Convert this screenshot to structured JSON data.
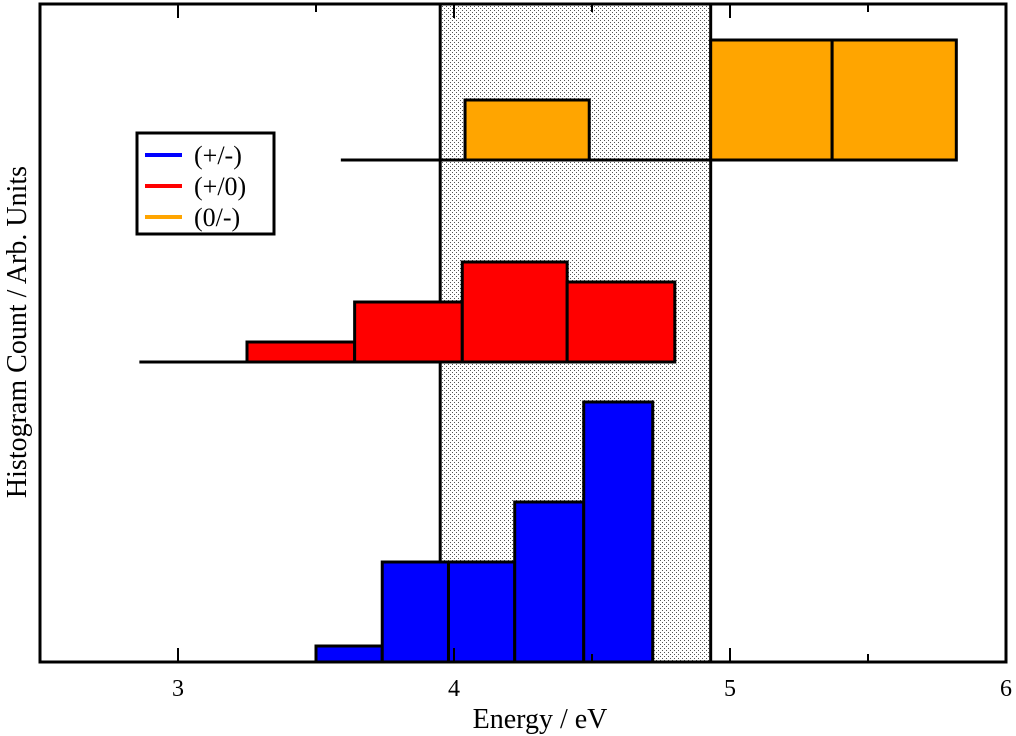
{
  "chart_data": {
    "type": "bar",
    "xlabel": "Energy / eV",
    "ylabel": "Histogram Count / Arb. Units",
    "xlim": [
      2.5,
      6.0
    ],
    "xticks": [
      3,
      4,
      5,
      6
    ],
    "grid": false,
    "legend_position": "upper-left",
    "shaded_region": {
      "x": [
        3.95,
        4.93
      ]
    },
    "series": [
      {
        "name": "(+/-)",
        "color": "#0000ff",
        "baseline_x_start": 3.5,
        "bins": [
          {
            "x0": 3.5,
            "x1": 3.74,
            "count": 0.08
          },
          {
            "x0": 3.74,
            "x1": 3.98,
            "count": 0.5
          },
          {
            "x0": 3.98,
            "x1": 4.22,
            "count": 0.5
          },
          {
            "x0": 4.22,
            "x1": 4.47,
            "count": 0.8
          },
          {
            "x0": 4.47,
            "x1": 4.72,
            "count": 1.3
          }
        ]
      },
      {
        "name": "(+/0)",
        "color": "#ff0000",
        "baseline_x_start": 2.86,
        "bins": [
          {
            "x0": 3.25,
            "x1": 3.64,
            "count": 0.1
          },
          {
            "x0": 3.64,
            "x1": 4.03,
            "count": 0.3
          },
          {
            "x0": 4.03,
            "x1": 4.41,
            "count": 0.5
          },
          {
            "x0": 4.41,
            "x1": 4.8,
            "count": 0.4
          }
        ]
      },
      {
        "name": "(0/-)",
        "color": "#ffa500",
        "baseline_x_start": 3.59,
        "bins": [
          {
            "x0": 4.04,
            "x1": 4.49,
            "count": 0.3
          },
          {
            "x0": 4.49,
            "x1": 4.93,
            "count": 0.0
          },
          {
            "x0": 4.93,
            "x1": 5.37,
            "count": 0.6
          },
          {
            "x0": 5.37,
            "x1": 5.82,
            "count": 0.6
          }
        ]
      }
    ]
  }
}
